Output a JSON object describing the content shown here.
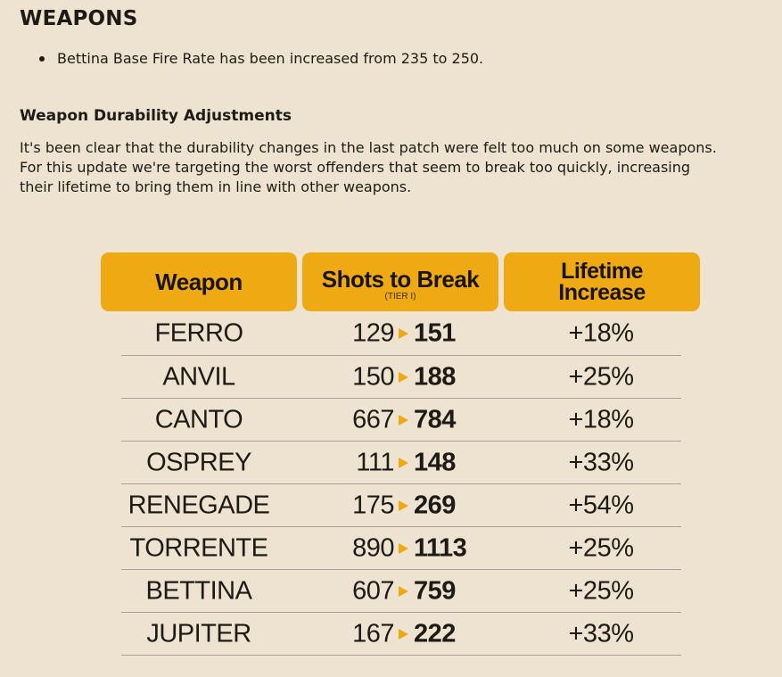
{
  "section": {
    "title": "WEAPONS",
    "bullets": [
      "Bettina Base Fire Rate has been increased from 235 to 250."
    ]
  },
  "durability": {
    "title": "Weapon Durability Adjustments",
    "paragraph_lines": [
      "It's been clear that the durability changes in the last patch were felt too much on some weapons.",
      "For this update we're targeting the worst offenders that seem to break too quickly, increasing",
      "their lifetime to bring them in line with other weapons."
    ]
  },
  "table": {
    "headers": {
      "weapon": "Weapon",
      "shots": "Shots to Break",
      "shots_sub": "(TIER I)",
      "lifetime_line1": "Lifetime",
      "lifetime_line2": "Increase"
    },
    "accent_color": "#eea913",
    "rows": [
      {
        "weapon": "FERRO",
        "from": "129",
        "to": "151",
        "increase": "+18%"
      },
      {
        "weapon": "ANVIL",
        "from": "150",
        "to": "188",
        "increase": "+25%"
      },
      {
        "weapon": "CANTO",
        "from": "667",
        "to": "784",
        "increase": "+18%"
      },
      {
        "weapon": "OSPREY",
        "from": "111",
        "to": "148",
        "increase": "+33%"
      },
      {
        "weapon": "RENEGADE",
        "from": "175",
        "to": "269",
        "increase": "+54%"
      },
      {
        "weapon": "TORRENTE",
        "from": "890",
        "to": "1113",
        "increase": "+25%"
      },
      {
        "weapon": "BETTINA",
        "from": "607",
        "to": "759",
        "increase": "+25%"
      },
      {
        "weapon": "JUPITER",
        "from": "167",
        "to": "222",
        "increase": "+33%"
      }
    ]
  }
}
